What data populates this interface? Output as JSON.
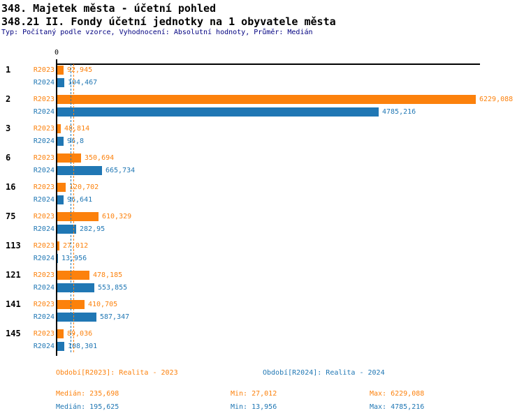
{
  "header": {
    "title1": "348. Majetek města - účetní pohled",
    "title2": "348.21 II. Fondy účetní jednotky na 1 obyvatele města",
    "subtitle": "Typ: Počítaný podle vzorce, Vyhodnocení: Absolutní hodnoty, Průměr: Medián"
  },
  "colors": {
    "orange": "#FC810C",
    "blue": "#2077B4",
    "navy": "#000080",
    "axis": "#000000"
  },
  "chart_data": {
    "type": "bar",
    "orientation": "horizontal",
    "title": "348.21 II. Fondy účetní jednotky na 1 obyvatele města",
    "x_zero_label": "0",
    "xlim": [
      0,
      6229.088
    ],
    "grid": false,
    "legend_position": "bottom",
    "categories": [
      "1",
      "2",
      "3",
      "6",
      "16",
      "75",
      "113",
      "121",
      "141",
      "145"
    ],
    "series": [
      {
        "name": "R2023",
        "color": "#FC810C",
        "values": [
          92.945,
          6229.088,
          48.814,
          350.694,
          120.702,
          610.329,
          27.012,
          478.185,
          410.705,
          89.036
        ],
        "value_labels": [
          "92,945",
          "6229,088",
          "48,814",
          "350,694",
          "120,702",
          "610,329",
          "27,012",
          "478,185",
          "410,705",
          "89,036"
        ],
        "median": 235.698
      },
      {
        "name": "R2024",
        "color": "#2077B4",
        "values": [
          104.467,
          4785.216,
          96.8,
          665.734,
          96.641,
          282.95,
          13.956,
          553.855,
          587.347,
          108.301
        ],
        "value_labels": [
          "104,467",
          "4785,216",
          "96,8",
          "665,734",
          "96,641",
          "282,95",
          "13,956",
          "553,855",
          "587,347",
          "108,301"
        ],
        "median": 195.625
      }
    ]
  },
  "legend": {
    "r2023": {
      "label": "Období[R2023]: Realita - 2023"
    },
    "r2024": {
      "label": "Období[R2024]: Realita - 2024"
    }
  },
  "stats": {
    "r2023": {
      "median": "Medián: 235,698",
      "min": "Min: 27,012",
      "max": "Max: 6229,088"
    },
    "r2024": {
      "median": "Medián: 195,625",
      "min": "Min: 13,956",
      "max": "Max: 4785,216"
    }
  }
}
